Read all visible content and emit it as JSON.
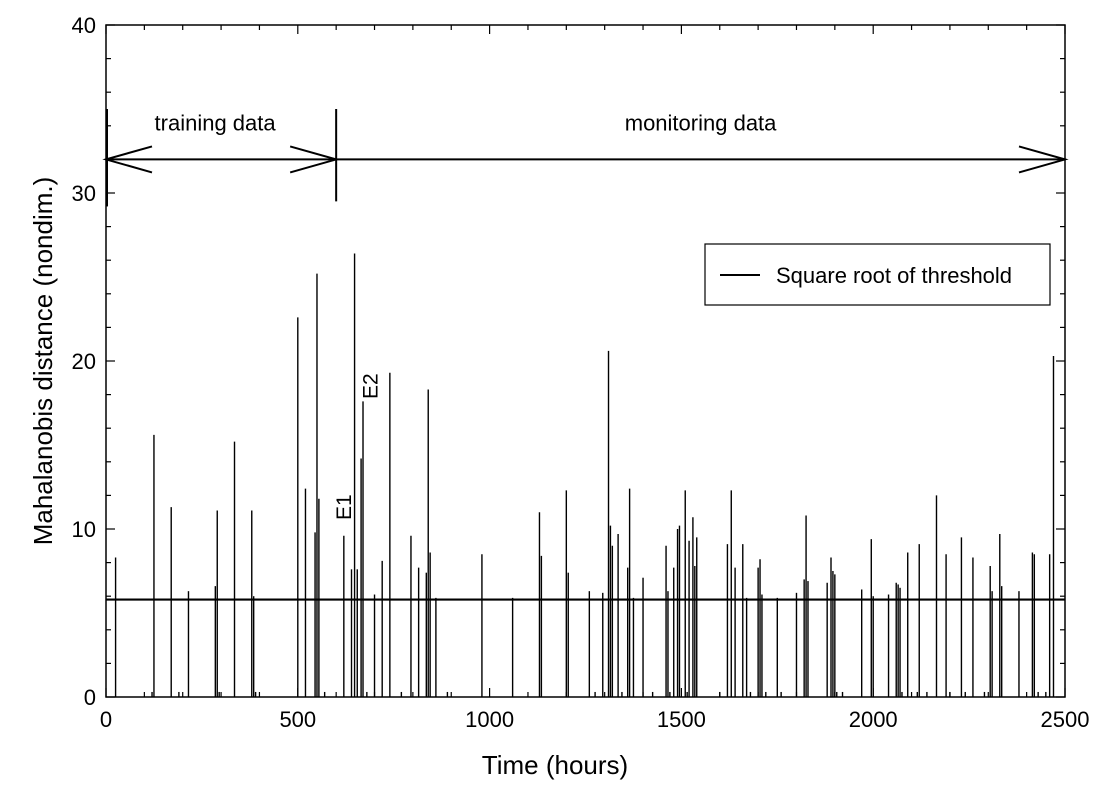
{
  "chart_data": {
    "type": "bar",
    "xlabel": "Time (hours)",
    "ylabel": "Mahalanobis distance (nondim.)",
    "xlim": [
      0,
      2500
    ],
    "ylim": [
      0,
      40
    ],
    "x_ticks": [
      0,
      500,
      1000,
      1500,
      2000,
      2500
    ],
    "y_ticks": [
      0,
      10,
      20,
      30,
      40
    ],
    "grid": false,
    "legend": {
      "position": "upper-right",
      "entries": [
        "Square root of threshold"
      ]
    },
    "threshold": {
      "name": "Square root of threshold",
      "value": 5.8
    },
    "regions": [
      {
        "label": "training data",
        "x_start": 0,
        "x_end": 600,
        "arrow_y": 32
      },
      {
        "label": "monitoring data",
        "x_start": 600,
        "x_end": 2500,
        "arrow_y": 32
      }
    ],
    "annotations": [
      {
        "text": "E1",
        "x": 620,
        "y": 11.3
      },
      {
        "text": "E2",
        "x": 690,
        "y": 18.5
      }
    ],
    "series": [
      {
        "name": "Mahalanobis distance",
        "x": [
          25,
          120,
          125,
          170,
          190,
          215,
          285,
          290,
          295,
          335,
          380,
          385,
          390,
          500,
          520,
          545,
          550,
          555,
          570,
          620,
          640,
          648,
          655,
          665,
          670,
          680,
          700,
          720,
          740,
          770,
          795,
          815,
          835,
          840,
          845,
          860,
          890,
          980,
          1060,
          1130,
          1135,
          1200,
          1205,
          1260,
          1275,
          1295,
          1310,
          1315,
          1320,
          1335,
          1345,
          1360,
          1365,
          1375,
          1400,
          1425,
          1460,
          1465,
          1470,
          1480,
          1490,
          1495,
          1510,
          1515,
          1520,
          1530,
          1535,
          1540,
          1600,
          1620,
          1630,
          1640,
          1660,
          1670,
          1680,
          1700,
          1705,
          1710,
          1720,
          1750,
          1760,
          1800,
          1820,
          1825,
          1830,
          1880,
          1890,
          1895,
          1900,
          1905,
          1920,
          1970,
          1995,
          2000,
          2040,
          2060,
          2065,
          2070,
          2075,
          2090,
          2115,
          2120,
          2140,
          2165,
          2190,
          2200,
          2230,
          2240,
          2260,
          2290,
          2305,
          2310,
          2330,
          2335,
          2380,
          2415,
          2420,
          2430,
          2450,
          2460,
          2470
        ],
        "values": [
          8.3,
          0.3,
          15.6,
          11.3,
          0.3,
          6.3,
          6.6,
          11.1,
          0.3,
          15.2,
          11.1,
          6.0,
          0.3,
          22.6,
          12.4,
          9.8,
          25.2,
          11.8,
          0.3,
          9.6,
          7.6,
          26.4,
          7.6,
          14.2,
          17.6,
          0.3,
          6.1,
          8.1,
          19.3,
          0.3,
          9.6,
          7.7,
          7.4,
          18.3,
          8.6,
          5.9,
          0.3,
          8.5,
          5.9,
          11.0,
          8.4,
          12.3,
          7.4,
          6.3,
          0.3,
          6.2,
          20.6,
          10.2,
          9.0,
          9.7,
          0.3,
          7.7,
          12.4,
          5.9,
          7.1,
          0.3,
          9.0,
          6.3,
          0.3,
          7.7,
          10.0,
          10.2,
          12.3,
          0.3,
          9.3,
          10.7,
          7.8,
          9.5,
          0.3,
          9.1,
          12.3,
          7.7,
          9.1,
          5.9,
          0.3,
          7.7,
          8.2,
          6.1,
          0.3,
          5.9,
          0.3,
          6.2,
          7.0,
          10.8,
          6.9,
          6.8,
          8.3,
          7.5,
          7.3,
          0.3,
          0.3,
          6.4,
          9.4,
          6.0,
          6.1,
          6.8,
          6.7,
          6.5,
          0.3,
          8.6,
          0.3,
          9.1,
          0.3,
          12.0,
          8.5,
          0.3,
          9.5,
          0.3,
          8.3,
          0.3,
          7.8,
          6.3,
          9.7,
          6.6,
          6.3,
          8.6,
          8.5,
          0.3,
          0.3,
          8.5,
          20.3
        ]
      }
    ]
  }
}
